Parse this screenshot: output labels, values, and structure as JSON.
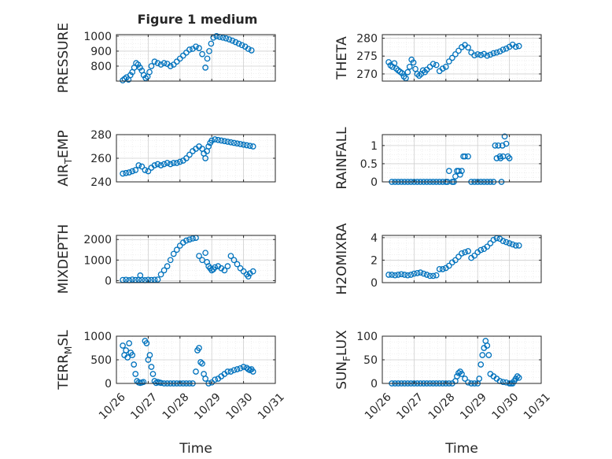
{
  "window": {
    "title": "Figure 1 medium"
  },
  "style": {
    "marker_color": "#0072bd",
    "axis_color": "#262626",
    "grid_color": "#d9d9d9",
    "background": "#ffffff",
    "marker": "open-circle"
  },
  "chart_data": [
    {
      "type": "scatter",
      "title": "Figure 1 medium",
      "ylabel": "PRESSURE",
      "xlabel": "",
      "xlim": [
        0,
        5
      ],
      "ylim": [
        700,
        1010
      ],
      "yticks": [
        800,
        900,
        1000
      ],
      "ytick_labels": [
        "800",
        "900",
        "1000"
      ],
      "grid": true,
      "x": [
        0.2,
        0.26,
        0.32,
        0.38,
        0.44,
        0.5,
        0.56,
        0.62,
        0.68,
        0.74,
        0.8,
        0.86,
        0.92,
        0.98,
        1.04,
        1.1,
        1.2,
        1.3,
        1.4,
        1.5,
        1.6,
        1.7,
        1.8,
        1.9,
        2.0,
        2.1,
        2.2,
        2.3,
        2.4,
        2.5,
        2.6,
        2.7,
        2.8,
        2.86,
        2.92,
        2.98,
        3.05,
        3.15,
        3.25,
        3.35,
        3.45,
        3.55,
        3.65,
        3.75,
        3.85,
        3.95,
        4.05,
        4.15,
        4.25
      ],
      "y": [
        705,
        715,
        725,
        710,
        740,
        760,
        790,
        820,
        810,
        790,
        770,
        740,
        720,
        730,
        760,
        800,
        830,
        820,
        810,
        820,
        815,
        800,
        810,
        830,
        850,
        870,
        890,
        910,
        915,
        930,
        920,
        880,
        790,
        850,
        900,
        950,
        990,
        1000,
        995,
        990,
        985,
        978,
        970,
        960,
        950,
        940,
        930,
        915,
        905
      ]
    },
    {
      "type": "scatter",
      "ylabel": "THETA",
      "xlabel": "",
      "xlim": [
        0,
        5
      ],
      "ylim": [
        268,
        281
      ],
      "yticks": [
        270,
        275,
        280
      ],
      "ytick_labels": [
        "270",
        "275",
        "280"
      ],
      "grid": true,
      "x": [
        0.2,
        0.26,
        0.32,
        0.38,
        0.44,
        0.5,
        0.56,
        0.62,
        0.68,
        0.74,
        0.8,
        0.86,
        0.92,
        0.98,
        1.04,
        1.1,
        1.16,
        1.22,
        1.28,
        1.34,
        1.4,
        1.5,
        1.6,
        1.7,
        1.8,
        1.9,
        2.0,
        2.1,
        2.2,
        2.3,
        2.4,
        2.5,
        2.6,
        2.7,
        2.8,
        2.9,
        3.0,
        3.1,
        3.2,
        3.3,
        3.4,
        3.5,
        3.6,
        3.7,
        3.8,
        3.9,
        4.0,
        4.1,
        4.2,
        4.3
      ],
      "y": [
        273.3,
        272.4,
        272.0,
        273.0,
        271.5,
        271.0,
        270.6,
        270.2,
        269.3,
        268.8,
        270.5,
        272.0,
        274.0,
        273.2,
        271.4,
        270.0,
        269.5,
        270.0,
        271.0,
        270.5,
        271.2,
        272.0,
        272.8,
        272.5,
        270.8,
        271.5,
        272.0,
        273.5,
        274.5,
        275.5,
        276.5,
        277.5,
        278.1,
        277.4,
        276.0,
        275.2,
        275.5,
        275.3,
        275.6,
        275.1,
        275.4,
        275.8,
        276.0,
        276.3,
        276.8,
        277.1,
        277.6,
        278.2,
        277.6,
        277.8
      ]
    },
    {
      "type": "scatter",
      "ylabel": "AIR_TEMP",
      "xlabel": "",
      "xlim": [
        0,
        5
      ],
      "ylim": [
        240,
        280
      ],
      "yticks": [
        240,
        260,
        280
      ],
      "ytick_labels": [
        "240",
        "260",
        "280"
      ],
      "grid": true,
      "x": [
        0.2,
        0.3,
        0.4,
        0.5,
        0.6,
        0.7,
        0.8,
        0.9,
        1.0,
        1.1,
        1.2,
        1.3,
        1.4,
        1.5,
        1.6,
        1.7,
        1.8,
        1.9,
        2.0,
        2.1,
        2.2,
        2.3,
        2.4,
        2.5,
        2.6,
        2.7,
        2.75,
        2.8,
        2.85,
        2.9,
        2.95,
        3.0,
        3.1,
        3.2,
        3.3,
        3.4,
        3.5,
        3.6,
        3.7,
        3.8,
        3.9,
        4.0,
        4.1,
        4.2,
        4.3
      ],
      "y": [
        247,
        247.5,
        248,
        249,
        250,
        254,
        253,
        250,
        249,
        252,
        254,
        255,
        254,
        255,
        256,
        255,
        256,
        256,
        257,
        258,
        260,
        263,
        266,
        268,
        270,
        268,
        264,
        260,
        266,
        270,
        273,
        275,
        276,
        275.5,
        275,
        274.5,
        274,
        273.5,
        273,
        272.5,
        272,
        271.5,
        271,
        270.5,
        270
      ]
    },
    {
      "type": "scatter",
      "ylabel": "RAINFALL",
      "xlabel": "",
      "xlim": [
        0,
        5
      ],
      "ylim": [
        0,
        1.3
      ],
      "yticks": [
        0,
        0.5,
        1
      ],
      "ytick_labels": [
        "0",
        "0.5",
        "1"
      ],
      "grid": true,
      "x": [
        0.3,
        0.4,
        0.5,
        0.6,
        0.7,
        0.8,
        0.9,
        1.0,
        1.1,
        1.2,
        1.3,
        1.4,
        1.5,
        1.6,
        1.7,
        1.8,
        1.9,
        2.0,
        2.05,
        2.1,
        2.2,
        2.25,
        2.3,
        2.35,
        2.4,
        2.45,
        2.5,
        2.55,
        2.6,
        2.7,
        2.8,
        2.9,
        3.0,
        3.1,
        3.2,
        3.3,
        3.4,
        3.5,
        3.55,
        3.6,
        3.65,
        3.7,
        3.72,
        3.75,
        3.78,
        3.8,
        3.85,
        3.9,
        3.95,
        4.0
      ],
      "y": [
        0,
        0,
        0,
        0,
        0,
        0,
        0,
        0,
        0,
        0,
        0,
        0,
        0,
        0,
        0,
        0,
        0,
        0,
        0,
        0.3,
        0,
        0,
        0.15,
        0.3,
        0.3,
        0.2,
        0.3,
        0.7,
        0.7,
        0.7,
        0,
        0,
        0,
        0,
        0,
        0,
        0,
        0,
        1.0,
        0.65,
        1.0,
        0.7,
        0.65,
        0,
        1.0,
        0.7,
        1.25,
        1.05,
        0.7,
        0.65
      ]
    },
    {
      "type": "scatter",
      "ylabel": "MIXDEPTH",
      "xlabel": "",
      "xlim": [
        0,
        5
      ],
      "ylim": [
        -100,
        2200
      ],
      "yticks": [
        0,
        1000,
        2000
      ],
      "ytick_labels": [
        "0",
        "1000",
        "2000"
      ],
      "grid": true,
      "x": [
        0.2,
        0.3,
        0.4,
        0.5,
        0.6,
        0.7,
        0.75,
        0.8,
        0.9,
        1.0,
        1.1,
        1.2,
        1.3,
        1.4,
        1.5,
        1.6,
        1.7,
        1.8,
        1.9,
        2.0,
        2.1,
        2.2,
        2.3,
        2.4,
        2.5,
        2.6,
        2.7,
        2.8,
        2.85,
        2.9,
        2.95,
        3.0,
        3.05,
        3.1,
        3.2,
        3.3,
        3.4,
        3.5,
        3.6,
        3.7,
        3.8,
        3.9,
        4.0,
        4.1,
        4.15,
        4.2,
        4.3
      ],
      "y": [
        30,
        40,
        20,
        50,
        30,
        40,
        250,
        30,
        20,
        40,
        30,
        40,
        50,
        300,
        500,
        700,
        1000,
        1300,
        1500,
        1700,
        1850,
        1950,
        2000,
        2050,
        2080,
        1200,
        1000,
        1350,
        900,
        700,
        600,
        500,
        550,
        650,
        700,
        600,
        500,
        700,
        1200,
        1000,
        800,
        600,
        450,
        300,
        200,
        350,
        450
      ]
    },
    {
      "type": "scatter",
      "ylabel": "H2OMIXRA",
      "xlabel": "",
      "xlim": [
        0,
        5
      ],
      "ylim": [
        0,
        4.2
      ],
      "yticks": [
        0,
        2,
        4
      ],
      "ytick_labels": [
        "0",
        "2",
        "4"
      ],
      "grid": true,
      "x": [
        0.2,
        0.3,
        0.4,
        0.5,
        0.6,
        0.7,
        0.8,
        0.9,
        1.0,
        1.1,
        1.2,
        1.3,
        1.4,
        1.5,
        1.6,
        1.7,
        1.8,
        1.9,
        2.0,
        2.1,
        2.2,
        2.3,
        2.4,
        2.5,
        2.6,
        2.7,
        2.8,
        2.9,
        3.0,
        3.1,
        3.2,
        3.3,
        3.4,
        3.5,
        3.6,
        3.7,
        3.8,
        3.9,
        4.0,
        4.1,
        4.2,
        4.3
      ],
      "y": [
        0.7,
        0.7,
        0.65,
        0.7,
        0.75,
        0.7,
        0.65,
        0.7,
        0.8,
        0.85,
        0.9,
        0.8,
        0.7,
        0.6,
        0.6,
        0.65,
        1.2,
        1.2,
        1.3,
        1.5,
        1.8,
        2.0,
        2.3,
        2.6,
        2.7,
        2.8,
        2.2,
        2.4,
        2.7,
        2.9,
        3.0,
        3.2,
        3.5,
        3.8,
        3.95,
        3.9,
        3.7,
        3.6,
        3.5,
        3.4,
        3.3,
        3.3
      ]
    },
    {
      "type": "scatter",
      "ylabel": "TERR_MSL",
      "xlabel": "Time",
      "xlim": [
        0,
        5
      ],
      "ylim": [
        0,
        1000
      ],
      "yticks": [
        0,
        500,
        1000
      ],
      "ytick_labels": [
        "0",
        "500",
        "1000"
      ],
      "xticks": [
        0,
        1,
        2,
        3,
        4,
        5
      ],
      "xtick_labels": [
        "10/26",
        "10/27",
        "10/28",
        "10/29",
        "10/30",
        "10/31"
      ],
      "grid": true,
      "x": [
        0.2,
        0.25,
        0.3,
        0.35,
        0.4,
        0.45,
        0.5,
        0.55,
        0.6,
        0.65,
        0.7,
        0.75,
        0.8,
        0.85,
        0.9,
        0.95,
        1.0,
        1.05,
        1.1,
        1.15,
        1.2,
        1.25,
        1.3,
        1.35,
        1.4,
        1.5,
        1.6,
        1.7,
        1.8,
        1.9,
        2.0,
        2.1,
        2.2,
        2.3,
        2.4,
        2.5,
        2.55,
        2.6,
        2.65,
        2.7,
        2.75,
        2.8,
        2.9,
        3.0,
        3.1,
        3.2,
        3.3,
        3.4,
        3.5,
        3.6,
        3.7,
        3.8,
        3.9,
        4.0,
        4.1,
        4.15,
        4.2,
        4.25,
        4.3
      ],
      "y": [
        800,
        600,
        700,
        550,
        850,
        650,
        600,
        400,
        200,
        50,
        20,
        10,
        20,
        30,
        900,
        850,
        500,
        600,
        350,
        200,
        50,
        10,
        30,
        20,
        10,
        0,
        0,
        0,
        0,
        0,
        0,
        0,
        0,
        0,
        0,
        250,
        700,
        750,
        450,
        420,
        200,
        100,
        0,
        20,
        80,
        100,
        150,
        200,
        250,
        250,
        280,
        300,
        320,
        350,
        330,
        300,
        280,
        300,
        250
      ]
    },
    {
      "type": "scatter",
      "ylabel": "SUN_FLUX",
      "xlabel": "Time",
      "xlim": [
        0,
        5
      ],
      "ylim": [
        0,
        100
      ],
      "yticks": [
        0,
        50,
        100
      ],
      "ytick_labels": [
        "0",
        "50",
        "100"
      ],
      "xticks": [
        0,
        1,
        2,
        3,
        4,
        5
      ],
      "xtick_labels": [
        "10/26",
        "10/27",
        "10/28",
        "10/29",
        "10/30",
        "10/31"
      ],
      "grid": true,
      "x": [
        0.3,
        0.4,
        0.5,
        0.6,
        0.7,
        0.8,
        0.9,
        1.0,
        1.1,
        1.2,
        1.3,
        1.4,
        1.5,
        1.6,
        1.7,
        1.8,
        1.9,
        2.0,
        2.1,
        2.2,
        2.3,
        2.35,
        2.4,
        2.45,
        2.5,
        2.6,
        2.7,
        2.8,
        2.9,
        3.0,
        3.05,
        3.1,
        3.15,
        3.2,
        3.25,
        3.3,
        3.35,
        3.4,
        3.5,
        3.6,
        3.7,
        3.8,
        3.9,
        4.0,
        4.05,
        4.1,
        4.15,
        4.2,
        4.25,
        4.3
      ],
      "y": [
        0,
        0,
        0,
        0,
        0,
        0,
        0,
        0,
        0,
        0,
        0,
        0,
        0,
        0,
        0,
        0,
        0,
        0,
        0,
        0,
        5,
        15,
        22,
        25,
        20,
        10,
        2,
        0,
        0,
        0,
        10,
        40,
        60,
        75,
        90,
        80,
        60,
        20,
        15,
        10,
        5,
        3,
        2,
        0,
        0,
        0,
        5,
        10,
        15,
        12
      ]
    }
  ],
  "axes_labels": [
    {
      "main": "PRESSURE",
      "sub": "",
      "post": ""
    },
    {
      "main": "THETA",
      "sub": "",
      "post": ""
    },
    {
      "main": "AIR",
      "sub": "T",
      "post": "EMP"
    },
    {
      "main": "RAINFALL",
      "sub": "",
      "post": ""
    },
    {
      "main": "MIXDEPTH",
      "sub": "",
      "post": ""
    },
    {
      "main": "H2OMIXRA",
      "sub": "",
      "post": ""
    },
    {
      "main": "TERR",
      "sub": "M",
      "post": "SL"
    },
    {
      "main": "SUN",
      "sub": "F",
      "post": "LUX"
    }
  ]
}
